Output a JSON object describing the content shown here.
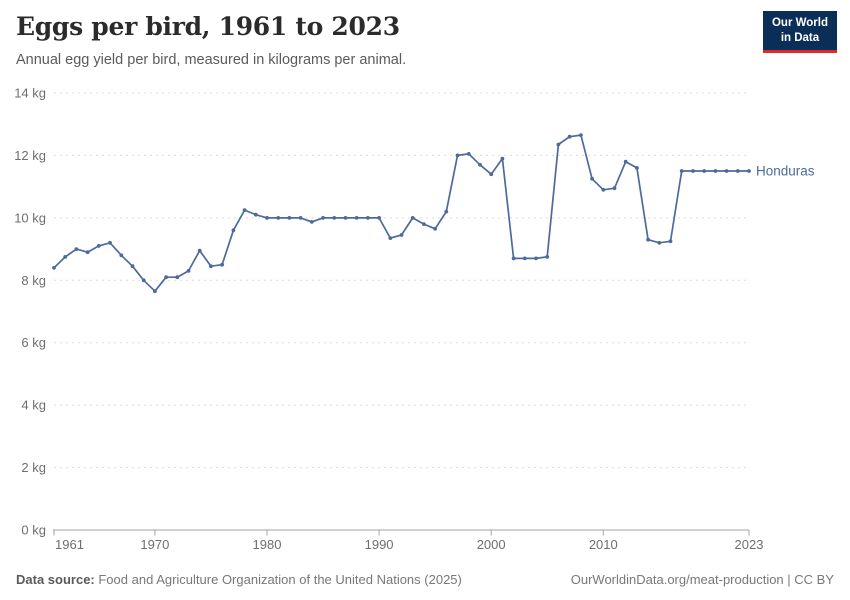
{
  "header": {
    "title": "Eggs per bird, 1961 to 2023",
    "subtitle": "Annual egg yield per bird, measured in kilograms per animal."
  },
  "logo": {
    "line1": "Our World",
    "line2": "in Data",
    "bg_color": "#0b2e59",
    "accent_color": "#dc2a2a"
  },
  "chart_data": {
    "type": "line",
    "title": "Eggs per bird, 1961 to 2023",
    "xlabel": "",
    "ylabel": "",
    "xlim": [
      1961,
      2023
    ],
    "ylim": [
      0,
      14
    ],
    "grid": true,
    "legend": "line-end-label",
    "x_ticks": [
      1961,
      1970,
      1980,
      1990,
      2000,
      2010,
      2023
    ],
    "y_ticks": [
      0,
      2,
      4,
      6,
      8,
      10,
      12,
      14
    ],
    "y_tick_suffix": " kg",
    "x": [
      1961,
      1962,
      1963,
      1964,
      1965,
      1966,
      1967,
      1968,
      1969,
      1970,
      1971,
      1972,
      1973,
      1974,
      1975,
      1976,
      1977,
      1978,
      1979,
      1980,
      1981,
      1982,
      1983,
      1984,
      1985,
      1986,
      1987,
      1988,
      1989,
      1990,
      1991,
      1992,
      1993,
      1994,
      1995,
      1996,
      1997,
      1998,
      1999,
      2000,
      2001,
      2002,
      2003,
      2004,
      2005,
      2006,
      2007,
      2008,
      2009,
      2010,
      2011,
      2012,
      2013,
      2014,
      2015,
      2016,
      2017,
      2018,
      2019,
      2020,
      2021,
      2022,
      2023
    ],
    "series": [
      {
        "name": "Honduras",
        "color": "#4c6a9c",
        "values": [
          8.4,
          8.75,
          9.0,
          8.9,
          9.1,
          9.2,
          8.8,
          8.45,
          8.0,
          7.65,
          8.1,
          8.1,
          8.3,
          8.95,
          8.45,
          8.5,
          9.6,
          10.25,
          10.1,
          10.0,
          10.0,
          10.0,
          10.0,
          9.87,
          10.0,
          10.0,
          10.0,
          10.0,
          10.0,
          10.0,
          9.35,
          9.45,
          10.0,
          9.8,
          9.65,
          10.2,
          12.0,
          12.05,
          11.7,
          11.4,
          11.9,
          8.7,
          8.7,
          8.7,
          8.75,
          12.35,
          12.6,
          12.65,
          11.25,
          10.9,
          10.95,
          11.8,
          11.6,
          9.3,
          9.2,
          9.25,
          11.5,
          11.5,
          11.5,
          11.5,
          11.5,
          11.5,
          11.5
        ]
      }
    ]
  },
  "footer": {
    "source_label": "Data source:",
    "source_text": " Food and Agriculture Organization of the United Nations (2025)",
    "link": "OurWorldinData.org/meat-production | CC BY"
  },
  "colors": {
    "line": "#4c6a9c",
    "grid": "#dcdcdc",
    "axis": "#a3a3a3",
    "tick_text": "#6e6e6e"
  }
}
